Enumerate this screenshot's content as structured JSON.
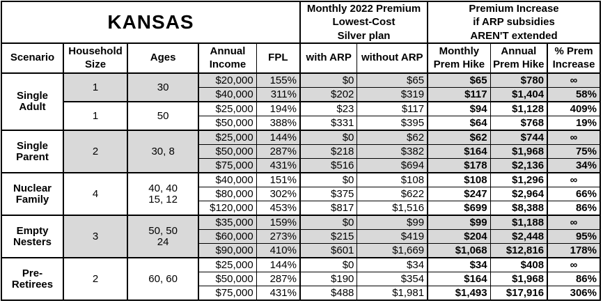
{
  "table": {
    "title": "KANSAS",
    "premium_header": "Monthly 2022 Premium\nLowest-Cost\nSilver plan",
    "increase_header": "Premium Increase\nif ARP subsidies\nAREN'T extended",
    "columns": {
      "scenario": "Scenario",
      "household_size": "Household\nSize",
      "ages": "Ages",
      "annual_income": "Annual\nIncome",
      "fpl": "FPL",
      "with_arp": "with ARP",
      "without_arp": "without ARP",
      "monthly_hike": "Monthly\nPrem Hike",
      "annual_hike": "Annual\nPrem Hike",
      "pct_increase": "% Prem\nIncrease"
    },
    "scenarios": [
      {
        "name": "Single\nAdult",
        "groups": [
          {
            "household_size": "1",
            "ages": "30",
            "shaded": true,
            "rows": [
              {
                "income": "$20,000",
                "fpl": "155%",
                "with_arp": "$0",
                "without_arp": "$65",
                "monthly_hike": "$65",
                "annual_hike": "$780",
                "pct_increase": "∞"
              },
              {
                "income": "$40,000",
                "fpl": "311%",
                "with_arp": "$202",
                "without_arp": "$319",
                "monthly_hike": "$117",
                "annual_hike": "$1,404",
                "pct_increase": "58%"
              }
            ]
          },
          {
            "household_size": "1",
            "ages": "50",
            "shaded": false,
            "rows": [
              {
                "income": "$25,000",
                "fpl": "194%",
                "with_arp": "$23",
                "without_arp": "$117",
                "monthly_hike": "$94",
                "annual_hike": "$1,128",
                "pct_increase": "409%"
              },
              {
                "income": "$50,000",
                "fpl": "388%",
                "with_arp": "$331",
                "without_arp": "$395",
                "monthly_hike": "$64",
                "annual_hike": "$768",
                "pct_increase": "19%"
              }
            ]
          }
        ]
      },
      {
        "name": "Single\nParent",
        "groups": [
          {
            "household_size": "2",
            "ages": "30, 8",
            "shaded": true,
            "rows": [
              {
                "income": "$25,000",
                "fpl": "144%",
                "with_arp": "$0",
                "without_arp": "$62",
                "monthly_hike": "$62",
                "annual_hike": "$744",
                "pct_increase": "∞"
              },
              {
                "income": "$50,000",
                "fpl": "287%",
                "with_arp": "$218",
                "without_arp": "$382",
                "monthly_hike": "$164",
                "annual_hike": "$1,968",
                "pct_increase": "75%"
              },
              {
                "income": "$75,000",
                "fpl": "431%",
                "with_arp": "$516",
                "without_arp": "$694",
                "monthly_hike": "$178",
                "annual_hike": "$2,136",
                "pct_increase": "34%"
              }
            ]
          }
        ]
      },
      {
        "name": "Nuclear\nFamily",
        "groups": [
          {
            "household_size": "4",
            "ages": "40, 40\n15, 12",
            "shaded": false,
            "rows": [
              {
                "income": "$40,000",
                "fpl": "151%",
                "with_arp": "$0",
                "without_arp": "$108",
                "monthly_hike": "$108",
                "annual_hike": "$1,296",
                "pct_increase": "∞"
              },
              {
                "income": "$80,000",
                "fpl": "302%",
                "with_arp": "$375",
                "without_arp": "$622",
                "monthly_hike": "$247",
                "annual_hike": "$2,964",
                "pct_increase": "66%"
              },
              {
                "income": "$120,000",
                "fpl": "453%",
                "with_arp": "$817",
                "without_arp": "$1,516",
                "monthly_hike": "$699",
                "annual_hike": "$8,388",
                "pct_increase": "86%"
              }
            ]
          }
        ]
      },
      {
        "name": "Empty\nNesters",
        "groups": [
          {
            "household_size": "3",
            "ages": "50, 50\n24",
            "shaded": true,
            "rows": [
              {
                "income": "$35,000",
                "fpl": "159%",
                "with_arp": "$0",
                "without_arp": "$99",
                "monthly_hike": "$99",
                "annual_hike": "$1,188",
                "pct_increase": "∞"
              },
              {
                "income": "$60,000",
                "fpl": "273%",
                "with_arp": "$215",
                "without_arp": "$419",
                "monthly_hike": "$204",
                "annual_hike": "$2,448",
                "pct_increase": "95%"
              },
              {
                "income": "$90,000",
                "fpl": "410%",
                "with_arp": "$601",
                "without_arp": "$1,669",
                "monthly_hike": "$1,068",
                "annual_hike": "$12,816",
                "pct_increase": "178%"
              }
            ]
          }
        ]
      },
      {
        "name": "Pre-\nRetirees",
        "groups": [
          {
            "household_size": "2",
            "ages": "60, 60",
            "shaded": false,
            "rows": [
              {
                "income": "$25,000",
                "fpl": "144%",
                "with_arp": "$0",
                "without_arp": "$34",
                "monthly_hike": "$34",
                "annual_hike": "$408",
                "pct_increase": "∞"
              },
              {
                "income": "$50,000",
                "fpl": "287%",
                "with_arp": "$190",
                "without_arp": "$354",
                "monthly_hike": "$164",
                "annual_hike": "$1,968",
                "pct_increase": "86%"
              },
              {
                "income": "$75,000",
                "fpl": "431%",
                "with_arp": "$488",
                "without_arp": "$1,981",
                "monthly_hike": "$1,493",
                "annual_hike": "$17,916",
                "pct_increase": "306%"
              }
            ]
          }
        ]
      }
    ]
  },
  "colors": {
    "shaded_row": "#d9d9d9",
    "border": "#000000",
    "background": "#ffffff",
    "text": "#000000"
  },
  "chart_data": {
    "type": "table",
    "title": "KANSAS",
    "column_groups": [
      "Monthly 2022 Premium Lowest-Cost Silver plan",
      "Premium Increase if ARP subsidies AREN'T extended"
    ],
    "columns": [
      "Scenario",
      "Household Size",
      "Ages",
      "Annual Income",
      "FPL",
      "with ARP",
      "without ARP",
      "Monthly Prem Hike",
      "Annual Prem Hike",
      "% Prem Increase"
    ],
    "rows": [
      [
        "Single Adult",
        "1",
        "30",
        "$20,000",
        "155%",
        "$0",
        "$65",
        "$65",
        "$780",
        "∞"
      ],
      [
        "Single Adult",
        "1",
        "30",
        "$40,000",
        "311%",
        "$202",
        "$319",
        "$117",
        "$1,404",
        "58%"
      ],
      [
        "Single Adult",
        "1",
        "50",
        "$25,000",
        "194%",
        "$23",
        "$117",
        "$94",
        "$1,128",
        "409%"
      ],
      [
        "Single Adult",
        "1",
        "50",
        "$50,000",
        "388%",
        "$331",
        "$395",
        "$64",
        "$768",
        "19%"
      ],
      [
        "Single Parent",
        "2",
        "30, 8",
        "$25,000",
        "144%",
        "$0",
        "$62",
        "$62",
        "$744",
        "∞"
      ],
      [
        "Single Parent",
        "2",
        "30, 8",
        "$50,000",
        "287%",
        "$218",
        "$382",
        "$164",
        "$1,968",
        "75%"
      ],
      [
        "Single Parent",
        "2",
        "30, 8",
        "$75,000",
        "431%",
        "$516",
        "$694",
        "$178",
        "$2,136",
        "34%"
      ],
      [
        "Nuclear Family",
        "4",
        "40, 40, 15, 12",
        "$40,000",
        "151%",
        "$0",
        "$108",
        "$108",
        "$1,296",
        "∞"
      ],
      [
        "Nuclear Family",
        "4",
        "40, 40, 15, 12",
        "$80,000",
        "302%",
        "$375",
        "$622",
        "$247",
        "$2,964",
        "66%"
      ],
      [
        "Nuclear Family",
        "4",
        "40, 40, 15, 12",
        "$120,000",
        "453%",
        "$817",
        "$1,516",
        "$699",
        "$8,388",
        "86%"
      ],
      [
        "Empty Nesters",
        "3",
        "50, 50, 24",
        "$35,000",
        "159%",
        "$0",
        "$99",
        "$99",
        "$1,188",
        "∞"
      ],
      [
        "Empty Nesters",
        "3",
        "50, 50, 24",
        "$60,000",
        "273%",
        "$215",
        "$419",
        "$204",
        "$2,448",
        "95%"
      ],
      [
        "Empty Nesters",
        "3",
        "50, 50, 24",
        "$90,000",
        "410%",
        "$601",
        "$1,669",
        "$1,068",
        "$12,816",
        "178%"
      ],
      [
        "Pre-Retirees",
        "2",
        "60, 60",
        "$25,000",
        "144%",
        "$0",
        "$34",
        "$34",
        "$408",
        "∞"
      ],
      [
        "Pre-Retirees",
        "2",
        "60, 60",
        "$50,000",
        "287%",
        "$190",
        "$354",
        "$164",
        "$1,968",
        "86%"
      ],
      [
        "Pre-Retirees",
        "2",
        "60, 60",
        "$75,000",
        "431%",
        "$488",
        "$1,981",
        "$1,493",
        "$17,916",
        "306%"
      ]
    ]
  }
}
